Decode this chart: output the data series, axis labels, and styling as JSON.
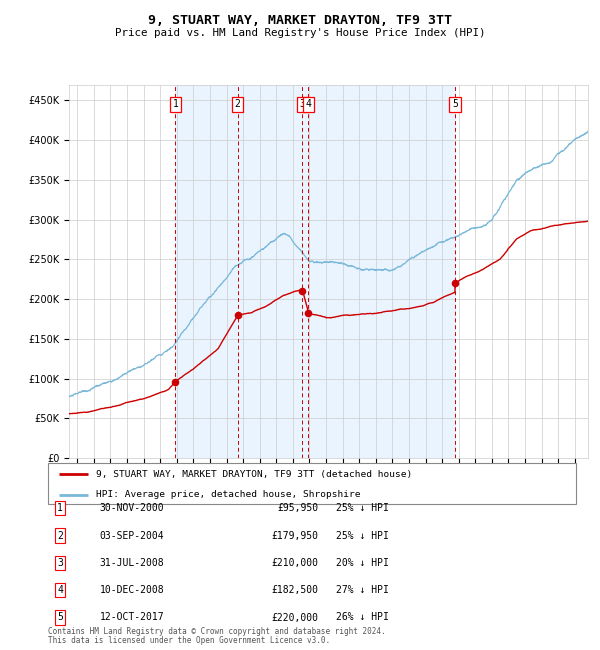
{
  "title": "9, STUART WAY, MARKET DRAYTON, TF9 3TT",
  "subtitle": "Price paid vs. HM Land Registry's House Price Index (HPI)",
  "legend_house": "9, STUART WAY, MARKET DRAYTON, TF9 3TT (detached house)",
  "legend_hpi": "HPI: Average price, detached house, Shropshire",
  "footer1": "Contains HM Land Registry data © Crown copyright and database right 2024.",
  "footer2": "This data is licensed under the Open Government Licence v3.0.",
  "transactions": [
    {
      "num": 1,
      "date": "30-NOV-2000",
      "price": 95950,
      "pct": "25%",
      "year": 2000.92
    },
    {
      "num": 2,
      "date": "03-SEP-2004",
      "price": 179950,
      "pct": "25%",
      "year": 2004.67
    },
    {
      "num": 3,
      "date": "31-JUL-2008",
      "price": 210000,
      "pct": "20%",
      "year": 2008.58
    },
    {
      "num": 4,
      "date": "10-DEC-2008",
      "price": 182500,
      "pct": "27%",
      "year": 2008.94
    },
    {
      "num": 5,
      "date": "12-OCT-2017",
      "price": 220000,
      "pct": "26%",
      "year": 2017.78
    }
  ],
  "hpi_color": "#7ab8d9",
  "house_color": "#cc0000",
  "dashed_color": "#cc0000",
  "bg_shade_color": "#ddeeff",
  "grid_color": "#cccccc",
  "ylim": [
    0,
    470000
  ],
  "xlim_start": 1994.5,
  "xlim_end": 2025.8
}
